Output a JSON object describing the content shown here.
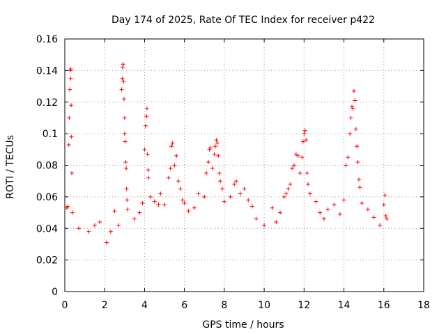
{
  "chart_data": {
    "type": "scatter",
    "title": "Day 174 of 2025, Rate Of TEC Index for receiver p422",
    "xlabel": "GPS time / hours",
    "ylabel": "ROTI / TECUs",
    "xlim": [
      0,
      18
    ],
    "ylim": [
      0,
      0.16
    ],
    "xticks": [
      0,
      2,
      4,
      6,
      8,
      10,
      12,
      14,
      16,
      18
    ],
    "xtick_labels": [
      "0",
      "2",
      "4",
      "6",
      "8",
      "10",
      "12",
      "14",
      "16",
      "18"
    ],
    "yticks": [
      0,
      0.02,
      0.04,
      0.06,
      0.08,
      0.1,
      0.12,
      0.14,
      0.16
    ],
    "ytick_labels": [
      "0",
      "0.02",
      "0.04",
      "0.06",
      "0.08",
      "0.1",
      "0.12",
      "0.14",
      "0.16"
    ],
    "grid": true,
    "marker": "+",
    "marker_color": "#ff0000",
    "series": [
      {
        "points": [
          [
            0.1,
            0.053
          ],
          [
            0.15,
            0.054
          ],
          [
            0.2,
            0.093
          ],
          [
            0.22,
            0.11
          ],
          [
            0.25,
            0.128
          ],
          [
            0.27,
            0.14
          ],
          [
            0.3,
            0.141
          ],
          [
            0.3,
            0.135
          ],
          [
            0.32,
            0.118
          ],
          [
            0.33,
            0.098
          ],
          [
            0.35,
            0.075
          ],
          [
            0.38,
            0.05
          ],
          [
            0.7,
            0.04
          ],
          [
            1.2,
            0.038
          ],
          [
            1.5,
            0.042
          ],
          [
            1.75,
            0.044
          ],
          [
            2.1,
            0.031
          ],
          [
            2.3,
            0.038
          ],
          [
            2.5,
            0.051
          ],
          [
            2.7,
            0.042
          ],
          [
            2.85,
            0.128
          ],
          [
            2.88,
            0.135
          ],
          [
            2.9,
            0.142
          ],
          [
            2.93,
            0.144
          ],
          [
            2.95,
            0.133
          ],
          [
            2.97,
            0.122
          ],
          [
            3.0,
            0.11
          ],
          [
            3.0,
            0.1
          ],
          [
            3.02,
            0.095
          ],
          [
            3.05,
            0.082
          ],
          [
            3.08,
            0.078
          ],
          [
            3.1,
            0.065
          ],
          [
            3.12,
            0.058
          ],
          [
            3.15,
            0.052
          ],
          [
            3.5,
            0.046
          ],
          [
            3.75,
            0.05
          ],
          [
            3.9,
            0.056
          ],
          [
            4.0,
            0.09
          ],
          [
            4.05,
            0.105
          ],
          [
            4.1,
            0.111
          ],
          [
            4.12,
            0.116
          ],
          [
            4.15,
            0.087
          ],
          [
            4.18,
            0.077
          ],
          [
            4.2,
            0.072
          ],
          [
            4.3,
            0.06
          ],
          [
            4.5,
            0.057
          ],
          [
            4.7,
            0.055
          ],
          [
            4.8,
            0.062
          ],
          [
            5.0,
            0.055
          ],
          [
            5.2,
            0.072
          ],
          [
            5.3,
            0.078
          ],
          [
            5.35,
            0.092
          ],
          [
            5.4,
            0.094
          ],
          [
            5.5,
            0.08
          ],
          [
            5.6,
            0.086
          ],
          [
            5.7,
            0.07
          ],
          [
            5.8,
            0.065
          ],
          [
            5.9,
            0.058
          ],
          [
            6.0,
            0.056
          ],
          [
            6.2,
            0.051
          ],
          [
            6.5,
            0.053
          ],
          [
            6.7,
            0.062
          ],
          [
            7.0,
            0.06
          ],
          [
            7.1,
            0.075
          ],
          [
            7.2,
            0.082
          ],
          [
            7.25,
            0.09
          ],
          [
            7.3,
            0.091
          ],
          [
            7.4,
            0.078
          ],
          [
            7.5,
            0.087
          ],
          [
            7.55,
            0.092
          ],
          [
            7.6,
            0.096
          ],
          [
            7.65,
            0.094
          ],
          [
            7.7,
            0.086
          ],
          [
            7.75,
            0.075
          ],
          [
            7.8,
            0.07
          ],
          [
            7.9,
            0.065
          ],
          [
            8.0,
            0.057
          ],
          [
            8.3,
            0.06
          ],
          [
            8.5,
            0.068
          ],
          [
            8.6,
            0.07
          ],
          [
            8.8,
            0.062
          ],
          [
            9.0,
            0.065
          ],
          [
            9.2,
            0.058
          ],
          [
            9.4,
            0.054
          ],
          [
            9.6,
            0.046
          ],
          [
            10.0,
            0.042
          ],
          [
            10.4,
            0.053
          ],
          [
            10.6,
            0.044
          ],
          [
            10.8,
            0.05
          ],
          [
            11.0,
            0.06
          ],
          [
            11.1,
            0.062
          ],
          [
            11.2,
            0.065
          ],
          [
            11.3,
            0.068
          ],
          [
            11.4,
            0.078
          ],
          [
            11.5,
            0.08
          ],
          [
            11.6,
            0.087
          ],
          [
            11.7,
            0.086
          ],
          [
            11.8,
            0.075
          ],
          [
            11.9,
            0.085
          ],
          [
            11.95,
            0.095
          ],
          [
            12.0,
            0.1
          ],
          [
            12.05,
            0.102
          ],
          [
            12.1,
            0.096
          ],
          [
            12.15,
            0.075
          ],
          [
            12.2,
            0.068
          ],
          [
            12.3,
            0.062
          ],
          [
            12.6,
            0.057
          ],
          [
            12.8,
            0.05
          ],
          [
            13.0,
            0.046
          ],
          [
            13.2,
            0.052
          ],
          [
            13.5,
            0.055
          ],
          [
            13.8,
            0.049
          ],
          [
            14.0,
            0.058
          ],
          [
            14.1,
            0.08
          ],
          [
            14.2,
            0.085
          ],
          [
            14.3,
            0.1
          ],
          [
            14.35,
            0.11
          ],
          [
            14.4,
            0.117
          ],
          [
            14.45,
            0.116
          ],
          [
            14.5,
            0.127
          ],
          [
            14.55,
            0.121
          ],
          [
            14.6,
            0.103
          ],
          [
            14.65,
            0.092
          ],
          [
            14.7,
            0.082
          ],
          [
            14.75,
            0.071
          ],
          [
            14.8,
            0.066
          ],
          [
            14.9,
            0.056
          ],
          [
            15.2,
            0.052
          ],
          [
            15.5,
            0.047
          ],
          [
            15.8,
            0.042
          ],
          [
            16.0,
            0.055
          ],
          [
            16.05,
            0.061
          ],
          [
            16.1,
            0.048
          ],
          [
            16.15,
            0.046
          ]
        ]
      }
    ]
  }
}
